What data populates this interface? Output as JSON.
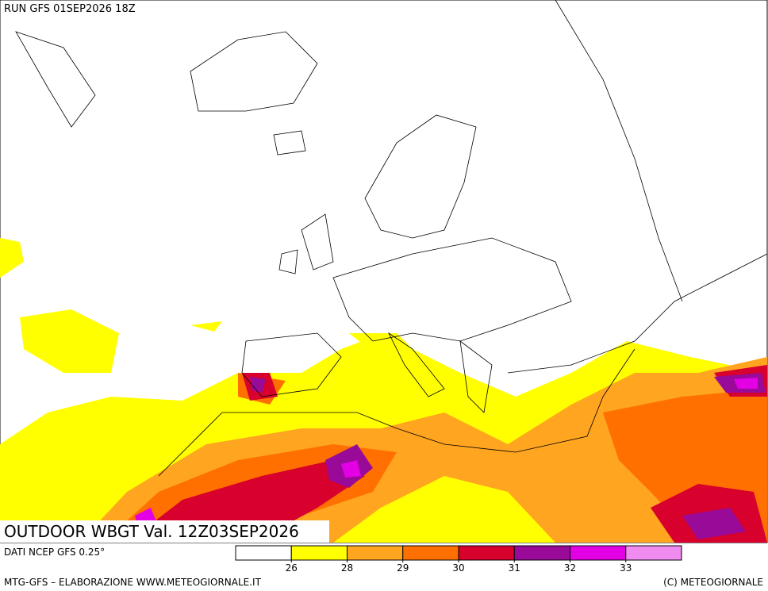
{
  "header": {
    "run": "RUN GFS 01SEP2026 18Z"
  },
  "title": "OUTDOOR WBGT Val. 12Z03SEP2026",
  "source": "DATI NCEP GFS 0.25°",
  "legend": {
    "colors": [
      "#ffffff",
      "#ffff00",
      "#ffa520",
      "#ff7000",
      "#d8002c",
      "#990a99",
      "#e400e4",
      "#f08cf0"
    ],
    "ticks": [
      26,
      28,
      29,
      30,
      31,
      32,
      33
    ]
  },
  "footer": {
    "left": "MTG-GFS – ELABORAZIONE WWW.METEOGIORNALE.IT",
    "right": "(C) METEOGIORNALE"
  }
}
